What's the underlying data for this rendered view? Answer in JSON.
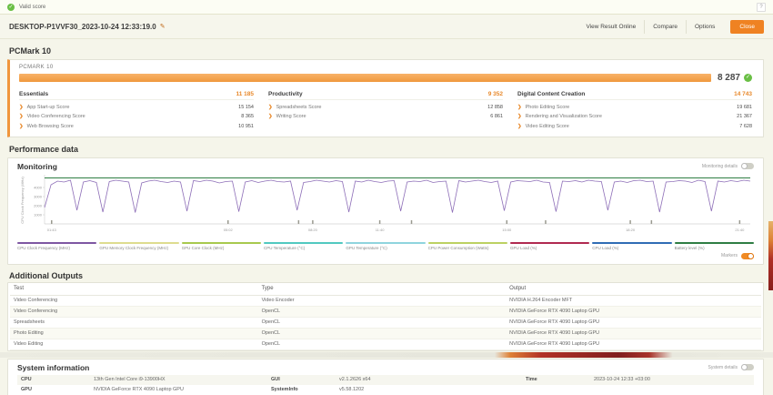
{
  "banner": {
    "label": "Valid score",
    "help": "?"
  },
  "header": {
    "result_name": "DESKTOP-P1VVF30_2023-10-24 12:33:19.0",
    "actions": {
      "view_online": "View Result Online",
      "compare": "Compare",
      "options": "Options"
    },
    "close_label": "Close"
  },
  "benchmark": {
    "title": "PCMark 10",
    "card_label": "PCMARK 10",
    "overall_score": "8 287",
    "groups": [
      {
        "name": "Essentials",
        "score": "11 185",
        "tests": [
          {
            "label": "App Start-up Score",
            "score": "15 154"
          },
          {
            "label": "Video Conferencing Score",
            "score": "8 365"
          },
          {
            "label": "Web Browsing Score",
            "score": "10 951"
          }
        ]
      },
      {
        "name": "Productivity",
        "score": "9 352",
        "tests": [
          {
            "label": "Spreadsheets Score",
            "score": "12 858"
          },
          {
            "label": "Writing Score",
            "score": "6 861"
          }
        ]
      },
      {
        "name": "Digital Content Creation",
        "score": "14 743",
        "tests": [
          {
            "label": "Photo Editing Score",
            "score": "19 681"
          },
          {
            "label": "Rendering and Visualization Score",
            "score": "21 367"
          },
          {
            "label": "Video Editing Score",
            "score": "7 628"
          }
        ]
      }
    ]
  },
  "performance": {
    "title": "Performance data",
    "monitoring_title": "Monitoring",
    "monitoring_details_label": "Monitoring details",
    "markers_label": "Markers"
  },
  "chart_data": {
    "type": "line",
    "title": "Monitoring",
    "ylabel": "CPU Clock Frequency (MHz)",
    "yticks": [
      1000,
      2000,
      3000,
      4000
    ],
    "ylim": [
      0,
      5200
    ],
    "xticks": [
      "01:43",
      "05:02",
      "08:20",
      "11:40",
      "15:00",
      "18:20",
      "21:40"
    ],
    "xtick_positions": [
      0.01,
      0.26,
      0.38,
      0.475,
      0.655,
      0.83,
      0.985
    ],
    "marker_positions": [
      0.01,
      0.26,
      0.36,
      0.38,
      0.475,
      0.52,
      0.655,
      0.71,
      0.83,
      0.86,
      0.985
    ],
    "grid": false,
    "legend_position": "bottom",
    "legend": [
      {
        "name": "CPU Clock Frequency (MHz)",
        "color": "#7e57a2"
      },
      {
        "name": "GPU Memory Clock Frequency (MHz)",
        "color": "#dedc8f"
      },
      {
        "name": "GPU Core Clock (MHz)",
        "color": "#a8c94e"
      },
      {
        "name": "CPU Temperature (°C)",
        "color": "#52c9c0"
      },
      {
        "name": "GPU Temperature (°C)",
        "color": "#8fd4de"
      },
      {
        "name": "CPU Power Consumption (Watts)",
        "color": "#bcd162"
      },
      {
        "name": "GPU Load (%)",
        "color": "#b02a50"
      },
      {
        "name": "CPU Load (%)",
        "color": "#2f6cb5"
      },
      {
        "name": "Battery level (%)",
        "color": "#2e7d43"
      }
    ],
    "series": [
      {
        "name": "CPU Clock Frequency (MHz)",
        "color": "#8e6fb8",
        "unit": "MHz",
        "values": [
          1800,
          4300,
          4700,
          4600,
          4800,
          1500,
          4600,
          4750,
          4550,
          1300,
          4650,
          4800,
          4700,
          4600,
          1250,
          4500,
          4700,
          4800,
          4650,
          4550,
          4700,
          4600,
          1400,
          4750,
          4650,
          4800,
          4700,
          4500,
          4650,
          4700,
          1350,
          4600,
          4750,
          4550,
          4700,
          4800,
          4650,
          4600,
          4700,
          1500,
          4550,
          4650,
          4800,
          4700,
          4600,
          4750,
          4650,
          1300,
          4700,
          4600,
          4800,
          4650,
          4550,
          4700,
          4750,
          1400,
          4600,
          4700,
          4650,
          4800,
          4550,
          4650,
          4700,
          1250,
          4750,
          4600,
          4700,
          4800,
          4650,
          4550,
          4700,
          1450,
          4600,
          4750,
          4700,
          4650,
          4800,
          4600,
          4550,
          1350,
          4700,
          4650,
          4750,
          4600,
          4800,
          4700,
          4650,
          1500,
          4600,
          4700,
          4550,
          4750,
          4800,
          4650,
          4700,
          1300,
          4600,
          4650,
          4750,
          4700,
          4550,
          4800,
          4650,
          1400,
          4700,
          4600,
          4750,
          4650,
          4800,
          4700
        ]
      },
      {
        "name": "Battery level (%)",
        "color": "#2e7d43",
        "unit": "%",
        "constant": 100
      }
    ]
  },
  "additional_outputs": {
    "title": "Additional Outputs",
    "columns": [
      "Test",
      "Type",
      "Output"
    ],
    "rows": [
      {
        "test": "Video Conferencing",
        "type": "Video Encoder",
        "output": "NVIDIA H.264 Encoder MFT"
      },
      {
        "test": "Video Conferencing",
        "type": "OpenCL",
        "output": "NVIDIA GeForce RTX 4090 Laptop GPU"
      },
      {
        "test": "Spreadsheets",
        "type": "OpenCL",
        "output": "NVIDIA GeForce RTX 4090 Laptop GPU"
      },
      {
        "test": "Photo Editing",
        "type": "OpenCL",
        "output": "NVIDIA GeForce RTX 4090 Laptop GPU"
      },
      {
        "test": "Video Editing",
        "type": "OpenCL",
        "output": "NVIDIA GeForce RTX 4090 Laptop GPU"
      }
    ]
  },
  "system_info": {
    "title": "System information",
    "details_label": "System details",
    "rows": [
      {
        "p1l": "CPU",
        "p1v": "13th Gen Intel Core i9-13900HX",
        "p2l": "GUI",
        "p2v": "v2.1.2626 x64",
        "p3l": "Time",
        "p3v": "2023-10-24 12:33 +03:00"
      },
      {
        "p1l": "GPU",
        "p1v": "NVIDIA GeForce RTX 4090 Laptop GPU",
        "p2l": "SystemInfo",
        "p2v": "v5.58.1202",
        "p3l": "",
        "p3v": ""
      }
    ]
  }
}
